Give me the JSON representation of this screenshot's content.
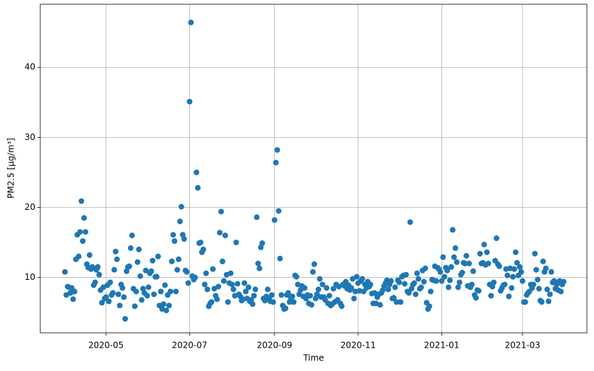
{
  "chart_data": {
    "type": "scatter",
    "x_label": "Time",
    "y_label": "PM2.5 [µg/m³]",
    "grid": true,
    "series": [
      {
        "color": "#1f77b4",
        "x": [
          18353,
          18354,
          18355,
          18356,
          18357,
          18358,
          18359,
          18360,
          18361,
          18362,
          18363,
          18364,
          18365,
          18366,
          18367,
          18368,
          18369,
          18370,
          18371,
          18372,
          18373,
          18374,
          18375,
          18376,
          18377,
          18378,
          18379,
          18380,
          18381,
          18382,
          18383,
          18384,
          18385,
          18386,
          18387,
          18388,
          18389,
          18390,
          18391,
          18392,
          18393,
          18394,
          18395,
          18396,
          18397,
          18398,
          18399,
          18400,
          18401,
          18402,
          18403,
          18404,
          18405,
          18406,
          18407,
          18408,
          18409,
          18410,
          18411,
          18412,
          18413,
          18414,
          18415,
          18416,
          18417,
          18418,
          18419,
          18420,
          18421,
          18422,
          18423,
          18424,
          18425,
          18426,
          18427,
          18428,
          18429,
          18430,
          18431,
          18432,
          18433,
          18434,
          18435,
          18436,
          18437,
          18438,
          18439,
          18440,
          18441,
          18442,
          18443,
          18444,
          18445,
          18446,
          18447,
          18448,
          18449,
          18450,
          18451,
          18452,
          18453,
          18454,
          18455,
          18456,
          18457,
          18458,
          18459,
          18460,
          18461,
          18462,
          18463,
          18464,
          18465,
          18466,
          18467,
          18468,
          18469,
          18470,
          18471,
          18472,
          18473,
          18474,
          18475,
          18476,
          18477,
          18478,
          18479,
          18480,
          18481,
          18482,
          18483,
          18484,
          18485,
          18486,
          18487,
          18488,
          18489,
          18490,
          18491,
          18492,
          18493,
          18494,
          18495,
          18496,
          18497,
          18498,
          18499,
          18500,
          18501,
          18502,
          18503,
          18504,
          18505,
          18506,
          18507,
          18508,
          18509,
          18510,
          18511,
          18512,
          18513,
          18514,
          18515,
          18516,
          18517,
          18518,
          18519,
          18520,
          18521,
          18522,
          18523,
          18524,
          18525,
          18526,
          18527,
          18528,
          18529,
          18530,
          18531,
          18532,
          18533,
          18534,
          18535,
          18536,
          18537,
          18538,
          18539,
          18540,
          18541,
          18542,
          18543,
          18544,
          18545,
          18546,
          18547,
          18548,
          18549,
          18550,
          18551,
          18552,
          18553,
          18554,
          18555,
          18556,
          18557,
          18558,
          18559,
          18560,
          18561,
          18562,
          18563,
          18564,
          18565,
          18566,
          18567,
          18568,
          18569,
          18570,
          18571,
          18572,
          18573,
          18574,
          18575,
          18576,
          18577,
          18578,
          18579,
          18580,
          18581,
          18582,
          18583,
          18584,
          18585,
          18586,
          18587,
          18588,
          18589,
          18590,
          18591,
          18592,
          18593,
          18594,
          18595,
          18596,
          18597,
          18598,
          18599,
          18600,
          18601,
          18602,
          18603,
          18604,
          18605,
          18606,
          18607,
          18608,
          18609,
          18610,
          18611,
          18612,
          18613,
          18614,
          18615,
          18616,
          18617,
          18618,
          18619,
          18620,
          18621,
          18622,
          18623,
          18624,
          18625,
          18626,
          18627,
          18628,
          18629,
          18630,
          18631,
          18632,
          18633,
          18634,
          18635,
          18636,
          18637,
          18638,
          18639,
          18640,
          18641,
          18642,
          18643,
          18644,
          18645,
          18646,
          18647,
          18648,
          18649,
          18650,
          18651,
          18652,
          18653,
          18654,
          18655,
          18656,
          18657,
          18658,
          18659,
          18660,
          18661,
          18662,
          18663,
          18664,
          18665,
          18666,
          18667,
          18668,
          18669,
          18670,
          18671,
          18672,
          18673,
          18674,
          18675,
          18676,
          18677,
          18678,
          18679,
          18680,
          18681,
          18682,
          18683,
          18684,
          18685,
          18686,
          18687,
          18688,
          18689,
          18690,
          18691,
          18692,
          18693,
          18694,
          18695,
          18696,
          18697,
          18698,
          18699,
          18700,
          18701,
          18702,
          18703,
          18704,
          18705,
          18706,
          18707,
          18708,
          18709,
          18710,
          18711,
          18712,
          18713,
          18714,
          18715,
          18716,
          18717
        ],
        "values": [
          10.8,
          7.5,
          8.7,
          8.6,
          7.8,
          8.5,
          6.9,
          8.0,
          12.6,
          16.1,
          13.0,
          16.5,
          20.9,
          15.2,
          18.5,
          16.5,
          11.9,
          11.4,
          13.2,
          11.2,
          11.5,
          8.9,
          9.3,
          11.1,
          11.5,
          10.4,
          8.2,
          6.4,
          8.6,
          7.0,
          7.2,
          8.9,
          6.6,
          9.3,
          7.5,
          7.8,
          11.1,
          13.7,
          12.6,
          7.6,
          6.0,
          9.0,
          8.5,
          7.2,
          4.1,
          10.9,
          11.5,
          11.6,
          14.2,
          16.0,
          8.4,
          5.9,
          8.0,
          12.2,
          14.0,
          10.2,
          6.8,
          8.4,
          7.8,
          11.0,
          7.4,
          8.6,
          10.6,
          10.9,
          12.4,
          7.6,
          10.1,
          10.1,
          13.0,
          6.0,
          8.0,
          5.5,
          6.2,
          8.9,
          5.3,
          7.5,
          6.0,
          8.0,
          12.3,
          16.1,
          15.2,
          8.0,
          11.1,
          12.6,
          18.0,
          20.1,
          16.1,
          15.5,
          11.0,
          10.8,
          9.2,
          35.1,
          46.4,
          10.2,
          9.7,
          10.0,
          25.0,
          22.8,
          14.9,
          15.0,
          13.6,
          14.0,
          9.0,
          10.6,
          8.3,
          5.9,
          6.3,
          6.5,
          11.2,
          8.4,
          7.4,
          6.9,
          8.7,
          16.4,
          19.4,
          12.3,
          9.5,
          16.0,
          10.4,
          6.5,
          9.2,
          10.6,
          9.0,
          8.3,
          7.4,
          15.0,
          9.1,
          7.6,
          7.3,
          6.7,
          6.9,
          9.2,
          8.0,
          7.0,
          8.6,
          6.6,
          6.8,
          6.2,
          7.4,
          8.3,
          18.6,
          12.0,
          11.3,
          14.3,
          14.9,
          7.0,
          6.7,
          7.3,
          8.3,
          7.0,
          6.6,
          7.5,
          6.5,
          18.2,
          26.4,
          28.2,
          19.5,
          12.7,
          7.5,
          6.0,
          5.5,
          5.6,
          7.5,
          7.8,
          6.5,
          7.0,
          7.3,
          6.5,
          10.3,
          10.1,
          9.0,
          7.6,
          8.2,
          8.8,
          7.3,
          8.5,
          7.0,
          7.5,
          6.3,
          7.4,
          6.1,
          10.8,
          11.9,
          7.0,
          7.6,
          8.3,
          9.8,
          7.2,
          9.0,
          7.2,
          6.8,
          8.5,
          6.3,
          7.4,
          6.0,
          6.2,
          8.4,
          6.5,
          9.0,
          6.8,
          8.7,
          6.3,
          5.9,
          9.0,
          8.8,
          9.4,
          8.4,
          8.9,
          8.2,
          8.5,
          9.8,
          7.0,
          8.0,
          10.1,
          9.2,
          8.1,
          9.5,
          9.8,
          8.0,
          9.0,
          8.5,
          9.4,
          8.7,
          9.0,
          7.7,
          6.3,
          7.8,
          6.3,
          7.2,
          7.6,
          6.1,
          7.8,
          8.2,
          8.8,
          9.2,
          9.6,
          8.3,
          9.0,
          9.5,
          7.0,
          7.1,
          8.6,
          6.5,
          9.6,
          9.3,
          6.5,
          10.1,
          10.3,
          9.1,
          10.4,
          8.0,
          7.8,
          17.9,
          8.4,
          9.0,
          9.2,
          7.6,
          10.6,
          9.8,
          8.4,
          8.6,
          11.0,
          9.4,
          11.3,
          6.4,
          5.5,
          5.9,
          8.0,
          9.7,
          9.6,
          11.6,
          9.5,
          11.4,
          11.2,
          10.8,
          9.5,
          12.9,
          10.1,
          11.4,
          11.0,
          8.6,
          9.6,
          11.5,
          16.8,
          12.9,
          14.2,
          12.2,
          8.6,
          9.3,
          10.4,
          10.7,
          12.1,
          12.0,
          13.1,
          8.8,
          12.0,
          8.6,
          9.0,
          10.9,
          7.5,
          7.1,
          8.2,
          8.1,
          13.4,
          12.0,
          12.1,
          14.7,
          11.8,
          13.6,
          12.0,
          9.0,
          7.4,
          8.7,
          9.3,
          12.4,
          15.6,
          11.9,
          11.6,
          8.1,
          8.5,
          8.9,
          9.0,
          11.2,
          10.3,
          7.3,
          11.3,
          8.5,
          10.1,
          11.2,
          13.6,
          12.1,
          10.3,
          11.5,
          10.8,
          9.5,
          6.5,
          6.5,
          7.5,
          7.8,
          8.0,
          9.0,
          8.5,
          9.0,
          13.4,
          11.1,
          9.7,
          8.4,
          6.7,
          6.5,
          12.3,
          10.8,
          11.3,
          8.3,
          6.6,
          7.6,
          10.8,
          9.3,
          9.5,
          8.4,
          9.0,
          8.2,
          9.5,
          8.0,
          9.0,
          9.4
        ]
      }
    ],
    "xlim": [
      18335,
      18734
    ],
    "xticks": [
      {
        "value": 18383,
        "label": "2020-05"
      },
      {
        "value": 18444,
        "label": "2020-07"
      },
      {
        "value": 18506,
        "label": "2020-09"
      },
      {
        "value": 18567,
        "label": "2020-11"
      },
      {
        "value": 18628,
        "label": "2021-01"
      },
      {
        "value": 18687,
        "label": "2021-03"
      }
    ],
    "ylim": [
      2.1,
      49.0
    ],
    "yticks": [
      10,
      20,
      30,
      40
    ]
  }
}
